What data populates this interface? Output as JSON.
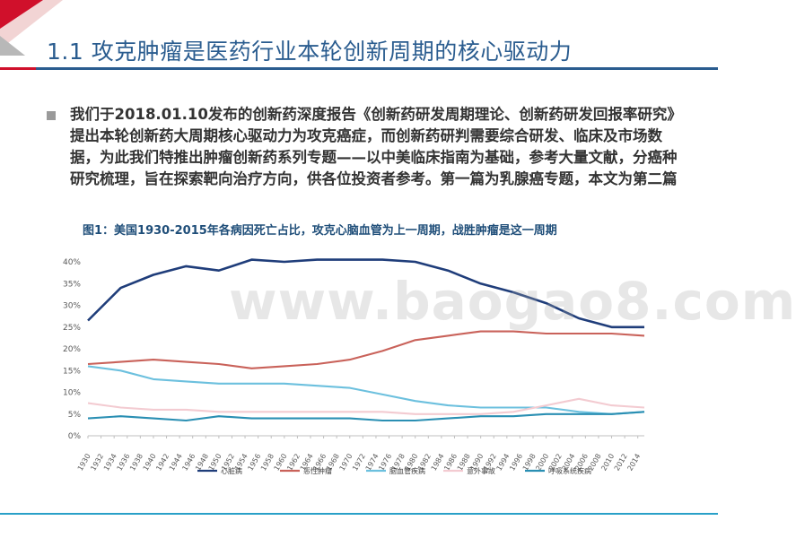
{
  "slide": {
    "title": "1.1 攻克肿瘤是医药行业本轮创新周期的核心驱动力",
    "bullet": "我们于2018.01.10发布的创新药深度报告《创新药研发周期理论、创新药研发回报率研究》提出本轮创新药大周期核心驱动力为攻克癌症，而创新药研判需要综合研发、临床及市场数据，为此我们特推出肿瘤创新药系列专题——以中美临床指南为基础，参考大量文献，分癌种研究梳理，旨在探索靶向治疗方向，供各位投资者参考。第一篇为乳腺癌专题，本文为第二篇",
    "figure_caption": "图1：美国1930-2015年各病因死亡占比，攻克心脑血管为上一周期，战胜肿瘤是这一周期",
    "watermark": "www.baogao8.com",
    "accent_red": "#d0102b",
    "accent_blue": "#1f4e79"
  },
  "chart_data": {
    "type": "line",
    "x": [
      1930,
      1935,
      1940,
      1945,
      1950,
      1955,
      1960,
      1965,
      1970,
      1975,
      1980,
      1985,
      1990,
      1995,
      2000,
      2005,
      2010,
      2015
    ],
    "xticks": [
      "1930",
      "1932",
      "1934",
      "1936",
      "1938",
      "1940",
      "1942",
      "1944",
      "1946",
      "1948",
      "1950",
      "1952",
      "1954",
      "1956",
      "1958",
      "1960",
      "1962",
      "1964",
      "1966",
      "1968",
      "1970",
      "1972",
      "1974",
      "1976",
      "1978",
      "1980",
      "1982",
      "1984",
      "1986",
      "1988",
      "1990",
      "1992",
      "1994",
      "1996",
      "1998",
      "2000",
      "2002",
      "2004",
      "2006",
      "2008",
      "2010",
      "2012",
      "2014"
    ],
    "yticks": [
      "0%",
      "5%",
      "10%",
      "15%",
      "20%",
      "25%",
      "30%",
      "35%",
      "40%"
    ],
    "ylim": [
      0,
      42
    ],
    "series": [
      {
        "name": "心脏病",
        "color": "#1f3d7a",
        "values": [
          26.5,
          34,
          37,
          39,
          38,
          40.5,
          40,
          40.5,
          40.5,
          40.5,
          40,
          38,
          35,
          33,
          30.5,
          27,
          25,
          25
        ]
      },
      {
        "name": "恶性肿瘤",
        "color": "#c9625a",
        "values": [
          16.5,
          17,
          17.5,
          17,
          16.5,
          15.5,
          16,
          16.5,
          17.5,
          19.5,
          22,
          23,
          24,
          24,
          23.5,
          23.5,
          23.5,
          23
        ]
      },
      {
        "name": "脑血管疾病",
        "color": "#6cc0de",
        "values": [
          16,
          15,
          13,
          12.5,
          12,
          12,
          12,
          11.5,
          11,
          9.5,
          8,
          7,
          6.5,
          6.5,
          6.5,
          5.5,
          5,
          5.5
        ]
      },
      {
        "name": "意外事故",
        "color": "#f3cbd1",
        "values": [
          7.5,
          6.5,
          6,
          6,
          5.5,
          5.5,
          5.5,
          5.5,
          5.5,
          5.5,
          5,
          5,
          5,
          5.5,
          7,
          8.5,
          7,
          6.5
        ]
      },
      {
        "name": "呼吸系统疾病",
        "color": "#2a8fb3",
        "values": [
          4,
          4.5,
          4,
          3.5,
          4.5,
          4,
          4,
          4,
          4,
          3.5,
          3.5,
          4,
          4.5,
          4.5,
          5,
          5,
          5,
          5.5
        ]
      }
    ],
    "grid": false,
    "legend_position": "bottom"
  }
}
